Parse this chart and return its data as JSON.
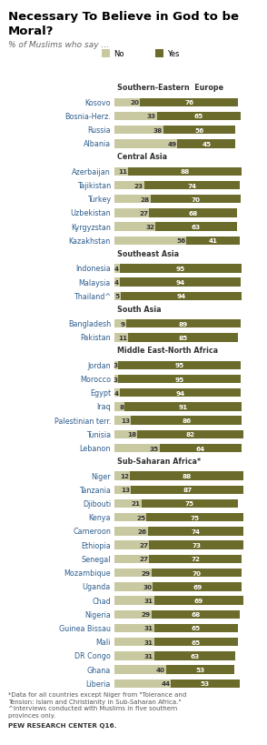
{
  "title": "Necessary To Believe in God to be\nMoral?",
  "subtitle": "% of Muslims who say ...",
  "legend_no": "No",
  "legend_yes": "Yes",
  "color_no": "#c9c9a1",
  "color_yes": "#6b6b2b",
  "regions": [
    {
      "name": "Southern-Eastern  Europe",
      "countries": [
        "Kosovo",
        "Bosnia-Herz.",
        "Russia",
        "Albania"
      ]
    },
    {
      "name": "Central Asia",
      "countries": [
        "Azerbaijan",
        "Tajikistan",
        "Turkey",
        "Uzbekistan",
        "Kyrgyzstan",
        "Kazakhstan"
      ]
    },
    {
      "name": "Southeast Asia",
      "countries": [
        "Indonesia",
        "Malaysia",
        "Thailand^"
      ]
    },
    {
      "name": "South Asia",
      "countries": [
        "Bangladesh",
        "Pakistan"
      ]
    },
    {
      "name": "Middle East-North Africa",
      "countries": [
        "Jordan",
        "Morocco",
        "Egypt",
        "Iraq",
        "Palestinian terr.",
        "Tunisia",
        "Lebanon"
      ]
    },
    {
      "name": "Sub-Saharan Africa*",
      "countries": [
        "Niger",
        "Tanzania",
        "Djibouti",
        "Kenya",
        "Cameroon",
        "Ethiopia",
        "Senegal",
        "Mozambique",
        "Uganda",
        "Chad",
        "Nigeria",
        "Guinea Bissau",
        "Mali",
        "DR Congo",
        "Ghana",
        "Liberia"
      ]
    }
  ],
  "data": {
    "Kosovo": {
      "no": 20,
      "yes": 76
    },
    "Bosnia-Herz.": {
      "no": 33,
      "yes": 65
    },
    "Russia": {
      "no": 38,
      "yes": 56
    },
    "Albania": {
      "no": 49,
      "yes": 45
    },
    "Azerbaijan": {
      "no": 11,
      "yes": 88
    },
    "Tajikistan": {
      "no": 23,
      "yes": 74
    },
    "Turkey": {
      "no": 28,
      "yes": 70
    },
    "Uzbekistan": {
      "no": 27,
      "yes": 68
    },
    "Kyrgyzstan": {
      "no": 32,
      "yes": 63
    },
    "Kazakhstan": {
      "no": 56,
      "yes": 41
    },
    "Indonesia": {
      "no": 4,
      "yes": 95
    },
    "Malaysia": {
      "no": 4,
      "yes": 94
    },
    "Thailand^": {
      "no": 5,
      "yes": 94
    },
    "Bangladesh": {
      "no": 9,
      "yes": 89
    },
    "Pakistan": {
      "no": 11,
      "yes": 85
    },
    "Jordan": {
      "no": 3,
      "yes": 95
    },
    "Morocco": {
      "no": 3,
      "yes": 95
    },
    "Egypt": {
      "no": 4,
      "yes": 94
    },
    "Iraq": {
      "no": 8,
      "yes": 91
    },
    "Palestinian terr.": {
      "no": 13,
      "yes": 86
    },
    "Tunisia": {
      "no": 18,
      "yes": 82
    },
    "Lebanon": {
      "no": 35,
      "yes": 64
    },
    "Niger": {
      "no": 12,
      "yes": 88
    },
    "Tanzania": {
      "no": 13,
      "yes": 87
    },
    "Djibouti": {
      "no": 21,
      "yes": 75
    },
    "Kenya": {
      "no": 25,
      "yes": 75
    },
    "Cameroon": {
      "no": 26,
      "yes": 74
    },
    "Ethiopia": {
      "no": 27,
      "yes": 73
    },
    "Senegal": {
      "no": 27,
      "yes": 72
    },
    "Mozambique": {
      "no": 29,
      "yes": 70
    },
    "Uganda": {
      "no": 30,
      "yes": 69
    },
    "Chad": {
      "no": 31,
      "yes": 69
    },
    "Nigeria": {
      "no": 29,
      "yes": 68
    },
    "Guinea Bissau": {
      "no": 31,
      "yes": 65
    },
    "Mali": {
      "no": 31,
      "yes": 65
    },
    "DR Congo": {
      "no": 31,
      "yes": 63
    },
    "Ghana": {
      "no": 40,
      "yes": 53
    },
    "Liberia": {
      "no": 44,
      "yes": 53
    }
  },
  "footer": "*Data for all countries except Niger from \"Tolerance and\nTension: Islam and Christianity in Sub-Saharan Africa.\"\n^Interviews conducted with Muslims in five southern\nprovinces only.",
  "source": "PEW RESEARCH CENTER Q16.",
  "country_color": "#2e5e8e",
  "header_color": "#333333",
  "number_color_no": "#333333",
  "number_color_yes": "#ffffff"
}
